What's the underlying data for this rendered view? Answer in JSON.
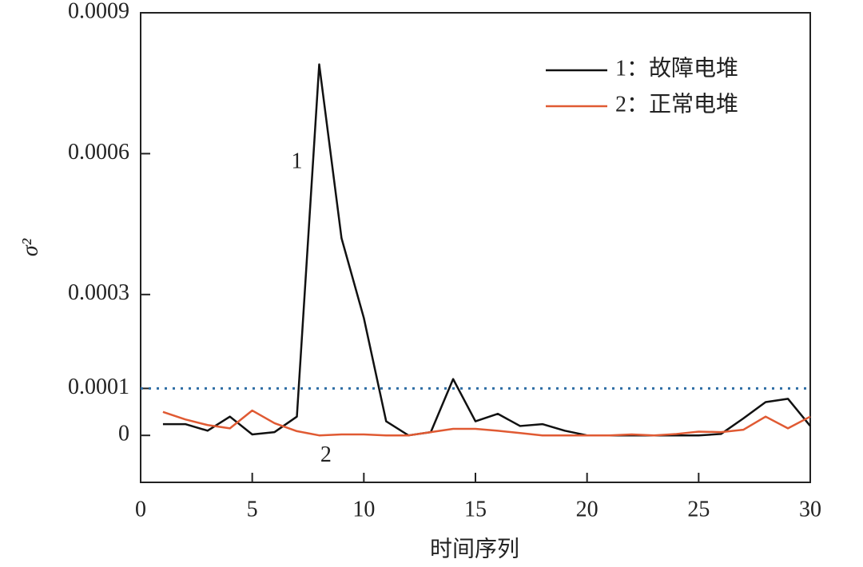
{
  "chart_data": {
    "type": "line",
    "x_label": "时间序列",
    "y_label": "σ²",
    "x": [
      1,
      2,
      3,
      4,
      5,
      6,
      7,
      8,
      9,
      10,
      11,
      12,
      13,
      14,
      15,
      16,
      17,
      18,
      19,
      20,
      21,
      22,
      23,
      24,
      25,
      26,
      27,
      28,
      29,
      30
    ],
    "series": [
      {
        "name": "1：故障电堆",
        "color": "#111111",
        "values": [
          2.4e-05,
          2.4e-05,
          1e-05,
          4e-05,
          2e-06,
          7e-06,
          4e-05,
          0.00079,
          0.00042,
          0.00025,
          3e-05,
          0,
          7e-06,
          0.00012,
          3e-05,
          4.6e-05,
          2e-05,
          2.4e-05,
          1e-05,
          0,
          0,
          0,
          0,
          0,
          0,
          3e-06,
          3.6e-05,
          7.1e-05,
          7.8e-05,
          2e-05
        ]
      },
      {
        "name": "2：正常电堆",
        "color": "#e05a33",
        "values": [
          5e-05,
          3.4e-05,
          2.2e-05,
          1.5e-05,
          5.3e-05,
          2.6e-05,
          9e-06,
          0,
          2e-06,
          2e-06,
          0,
          0,
          7e-06,
          1.4e-05,
          1.4e-05,
          1e-05,
          5e-06,
          0,
          0,
          0,
          0,
          2e-06,
          0,
          3e-06,
          8e-06,
          7e-06,
          1.2e-05,
          4e-05,
          1.5e-05,
          4e-05
        ]
      }
    ],
    "threshold": 0.0001,
    "threshold_color": "#2e6da4",
    "annotations": [
      {
        "text": "1",
        "x": 7,
        "y": 0.00058
      },
      {
        "text": "2",
        "x": 8.3,
        "y": -4.5e-05
      }
    ],
    "xlim": [
      0,
      30
    ],
    "xticks": [
      0,
      5,
      10,
      15,
      20,
      25,
      30
    ],
    "ylim": [
      -0.0001,
      0.0009
    ],
    "yticks": [
      0,
      0.0001,
      0.0003,
      0.0006,
      0.0009
    ],
    "legend": "upper right",
    "grid": false
  }
}
